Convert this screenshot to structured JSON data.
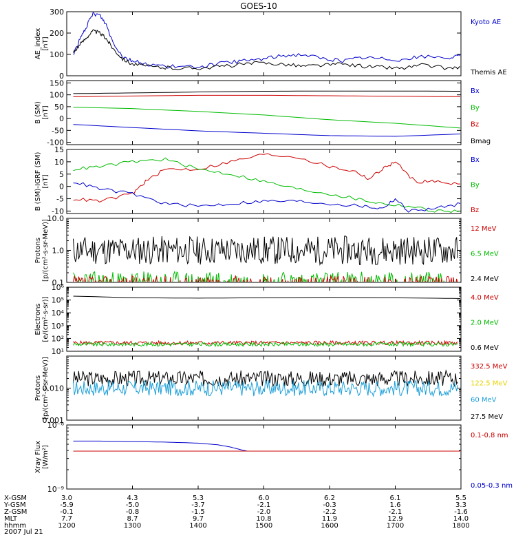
{
  "title": "GOES-10",
  "panels": [
    {
      "id": "ae",
      "ylabel": [
        "AE_index",
        "[nT]"
      ],
      "scale": "linear",
      "ylim": [
        0,
        300
      ],
      "yticks": [
        "0",
        "100",
        "200",
        "300"
      ],
      "legend": [
        {
          "label": "Kyoto AE",
          "color": "#0000cc"
        },
        {
          "label": "Themis AE",
          "color": "#000000"
        }
      ],
      "series": [
        {
          "name": "Kyoto AE",
          "color": "#0000cc",
          "x": [
            0.1,
            0.2,
            0.3,
            0.4,
            0.5,
            0.6,
            0.7,
            0.85,
            1.0,
            1.2,
            1.5,
            1.8,
            2.1,
            2.4,
            2.7,
            3.0,
            3.3,
            3.6,
            3.9,
            4.2,
            4.5,
            4.8,
            5.1,
            5.4,
            5.8,
            6.0
          ],
          "y": [
            100,
            170,
            230,
            290,
            285,
            240,
            160,
            90,
            70,
            55,
            45,
            40,
            45,
            60,
            70,
            80,
            95,
            100,
            80,
            70,
            85,
            80,
            75,
            90,
            85,
            90
          ]
        },
        {
          "name": "Themis AE",
          "color": "#000000",
          "x": [
            0.1,
            0.2,
            0.3,
            0.4,
            0.5,
            0.6,
            0.7,
            0.85,
            1.0,
            1.2,
            1.5,
            1.8,
            2.1,
            2.4,
            2.7,
            3.0,
            3.3,
            3.6,
            3.9,
            4.2,
            4.5,
            4.8,
            5.1,
            5.4,
            5.8,
            6.0
          ],
          "y": [
            110,
            145,
            180,
            210,
            200,
            175,
            130,
            80,
            55,
            45,
            38,
            35,
            38,
            45,
            55,
            60,
            55,
            45,
            50,
            55,
            45,
            40,
            35,
            50,
            35,
            40
          ]
        }
      ]
    },
    {
      "id": "bsm",
      "ylabel": [
        "B (SM)",
        "[nT]"
      ],
      "scale": "linear",
      "ylim": [
        -110,
        160
      ],
      "yticks": [
        "-100",
        "-50",
        "0",
        "50",
        "100",
        "150"
      ],
      "legend": [
        {
          "label": "Bx",
          "color": "#0000cc"
        },
        {
          "label": "By",
          "color": "#00bb00"
        },
        {
          "label": "Bz",
          "color": "#cc0000"
        },
        {
          "label": "Bmag",
          "color": "#000000"
        }
      ],
      "series": [
        {
          "name": "Bmag",
          "color": "#000000",
          "x": [
            0.1,
            1.0,
            2.0,
            3.0,
            4.0,
            5.0,
            6.0
          ],
          "y": [
            105,
            108,
            112,
            115,
            116,
            116,
            115
          ]
        },
        {
          "name": "Bz",
          "color": "#cc0000",
          "x": [
            0.1,
            1.0,
            2.0,
            3.0,
            4.0,
            5.0,
            6.0
          ],
          "y": [
            92,
            95,
            98,
            98,
            96,
            94,
            92
          ]
        },
        {
          "name": "By",
          "color": "#00bb00",
          "x": [
            0.1,
            1.0,
            2.0,
            3.0,
            4.0,
            5.0,
            6.0
          ],
          "y": [
            48,
            42,
            30,
            15,
            -5,
            -20,
            -40
          ]
        },
        {
          "name": "Bx",
          "color": "#0000cc",
          "x": [
            0.1,
            1.0,
            2.0,
            3.0,
            4.0,
            5.0,
            6.0
          ],
          "y": [
            -25,
            -38,
            -52,
            -62,
            -72,
            -75,
            -65
          ]
        }
      ]
    },
    {
      "id": "bdiff",
      "ylabel": [
        "B (SM)-IGRF (SM)",
        "[nT]"
      ],
      "scale": "linear",
      "ylim": [
        -11,
        15
      ],
      "yticks": [
        "-10",
        "-5",
        "0",
        "5",
        "10",
        "15"
      ],
      "legend": [
        {
          "label": "Bx",
          "color": "#0000cc"
        },
        {
          "label": "By",
          "color": "#00bb00"
        },
        {
          "label": "Bz",
          "color": "#cc0000"
        }
      ],
      "series": [
        {
          "name": "Bz",
          "color": "#cc0000",
          "x": [
            0.1,
            0.5,
            1.0,
            1.2,
            1.5,
            2.0,
            2.5,
            3.0,
            3.5,
            4.0,
            4.4,
            4.6,
            4.8,
            5.0,
            5.3,
            5.6,
            6.0
          ],
          "y": [
            -5,
            -6,
            -3,
            2,
            7,
            7,
            10,
            13,
            12,
            8,
            6,
            3,
            7,
            10,
            2,
            2,
            1
          ]
        },
        {
          "name": "By",
          "color": "#00bb00",
          "x": [
            0.1,
            0.5,
            1.0,
            1.5,
            2.0,
            2.5,
            3.0,
            3.5,
            4.0,
            4.4,
            4.8,
            5.2,
            5.6,
            6.0
          ],
          "y": [
            7,
            8,
            10,
            11,
            7,
            5,
            2,
            -1,
            -3,
            -5,
            -7,
            -8,
            -10,
            -10
          ]
        },
        {
          "name": "Bx",
          "color": "#0000cc",
          "x": [
            0.1,
            0.5,
            1.0,
            1.5,
            2.0,
            2.5,
            3.0,
            3.5,
            4.0,
            4.5,
            4.8,
            5.0,
            5.2,
            5.6,
            6.0
          ],
          "y": [
            2,
            -1,
            -3,
            -7,
            -8,
            -7,
            -6,
            -6,
            -7,
            -8,
            -9,
            -5,
            -10,
            -9,
            -7
          ]
        }
      ]
    },
    {
      "id": "protons-hi",
      "ylabel": [
        "Protons",
        "[p/(cm²-s-sr-MeV)]"
      ],
      "scale": "log",
      "ylim": [
        0.1,
        10.0
      ],
      "yticks": [
        "0.1",
        "1.0",
        "10.0"
      ],
      "legend": [
        {
          "label": "12 MeV",
          "color": "#cc0000"
        },
        {
          "label": "6.5 MeV",
          "color": "#00bb00"
        },
        {
          "label": "2.4 MeV",
          "color": "#000000"
        }
      ],
      "series": [
        {
          "name": "2.4 MeV",
          "color": "#000000",
          "center": 1.0,
          "spread": 0.45,
          "seed": 11
        },
        {
          "name": "6.5 MeV",
          "color": "#00bb00",
          "center": 0.1,
          "spread": 0.35,
          "seed": 23
        },
        {
          "name": "12 MeV",
          "color": "#cc0000",
          "center": 0.09,
          "spread": 0.25,
          "seed": 37
        }
      ]
    },
    {
      "id": "electrons",
      "ylabel": [
        "Electrons",
        "[e/(cm²-s-sr)]"
      ],
      "scale": "log",
      "ylim": [
        10,
        1000000
      ],
      "yticks": [
        "10¹",
        "10²",
        "10³",
        "10⁴",
        "10⁵",
        "10⁶"
      ],
      "legend": [
        {
          "label": "4.0 MeV",
          "color": "#cc0000"
        },
        {
          "label": "2.0 MeV",
          "color": "#00bb00"
        },
        {
          "label": "0.6 MeV",
          "color": "#000000"
        }
      ],
      "series": [
        {
          "name": "0.6 MeV",
          "color": "#000000",
          "x": [
            0.1,
            1.0,
            2.0,
            3.0,
            4.0,
            5.0,
            6.0
          ],
          "y": [
            200000,
            150000,
            140000,
            150000,
            160000,
            150000,
            130000
          ]
        },
        {
          "name": "4.0 MeV",
          "color": "#cc0000",
          "center": 45,
          "spread": 0.15,
          "seed": 5
        },
        {
          "name": "2.0 MeV",
          "color": "#00bb00",
          "center": 35,
          "spread": 0.15,
          "seed": 9
        }
      ]
    },
    {
      "id": "protons-vhi",
      "ylabel": [
        "Protons",
        "[p/(cm²-s-sr-MeV)]"
      ],
      "scale": "log",
      "ylim": [
        0.001,
        0.1
      ],
      "yticks": [
        "0.001",
        "0.010",
        ""
      ],
      "legend": [
        {
          "label": "332.5 MeV",
          "color": "#cc0000"
        },
        {
          "label": "122.5 MeV",
          "color": "#e8d400"
        },
        {
          "label": "60 MeV",
          "color": "#1a9ed8"
        },
        {
          "label": "27.5 MeV",
          "color": "#000000"
        }
      ],
      "series": [
        {
          "name": "27.5 MeV",
          "color": "#000000",
          "center": 0.02,
          "spread": 0.25,
          "seed": 3
        },
        {
          "name": "60 MeV",
          "color": "#1a9ed8",
          "center": 0.01,
          "spread": 0.25,
          "seed": 17
        }
      ]
    },
    {
      "id": "xray",
      "ylabel": [
        "Xray Flux",
        "[W/m²]"
      ],
      "scale": "log",
      "ylim": [
        1e-09,
        1e-08
      ],
      "yticks": [
        "10⁻⁹",
        "10⁻⁸"
      ],
      "legend": [
        {
          "label": "0.1-0.8 nm",
          "color": "#cc0000"
        },
        {
          "label": "0.05-0.3 nm",
          "color": "#0000cc"
        }
      ],
      "series": [
        {
          "name": "0.05-0.3 nm",
          "color": "#0000cc",
          "x": [
            0.1,
            0.5,
            1.0,
            1.5,
            2.0,
            2.3,
            2.5,
            2.65,
            2.75,
            6.0
          ],
          "y": [
            5.6e-09,
            5.6e-09,
            5.5e-09,
            5.4e-09,
            5.2e-09,
            4.9e-09,
            4.5e-09,
            4.1e-09,
            3.9e-09,
            3.9e-09
          ]
        },
        {
          "name": "0.1-0.8 nm",
          "color": "#cc0000",
          "x": [
            0.1,
            6.0
          ],
          "y": [
            3.9e-09,
            3.9e-09
          ]
        }
      ]
    }
  ],
  "chart_data": {
    "type": "line",
    "title": "GOES-10",
    "xlim": [
      0,
      6
    ],
    "x_tick_positions": [
      0,
      1,
      2,
      3,
      4,
      5,
      6
    ],
    "panels": [
      "AE index [nT]",
      "B (SM) [nT]",
      "B (SM)-IGRF (SM) [nT]",
      "Protons [p/(cm2-s-sr-MeV)]",
      "Electrons [e/(cm2-s-sr)]",
      "Protons [p/(cm2-s-sr-MeV)]",
      "Xray Flux [W/m2]"
    ]
  },
  "xaxis_rows": [
    {
      "label": "X-GSM",
      "values": [
        "3.0",
        "4.3",
        "5.3",
        "6.0",
        "6.2",
        "6.1",
        "5.5"
      ]
    },
    {
      "label": "Y-GSM",
      "values": [
        "-5.9",
        "-5.0",
        "-3.7",
        "-2.1",
        "-0.3",
        "1.6",
        "3.3"
      ]
    },
    {
      "label": "Z-GSM",
      "values": [
        "-0.1",
        "-0.8",
        "-1.5",
        "-2.0",
        "-2.2",
        "-2.1",
        "-1.6"
      ]
    },
    {
      "label": "MLT",
      "values": [
        "7.7",
        "8.7",
        "9.7",
        "10.8",
        "11.9",
        "12.9",
        "14.0"
      ]
    },
    {
      "label": "hhmm",
      "values": [
        "1200",
        "1300",
        "1400",
        "1500",
        "1600",
        "1700",
        "1800"
      ]
    }
  ],
  "date": "2007 Jul 21"
}
